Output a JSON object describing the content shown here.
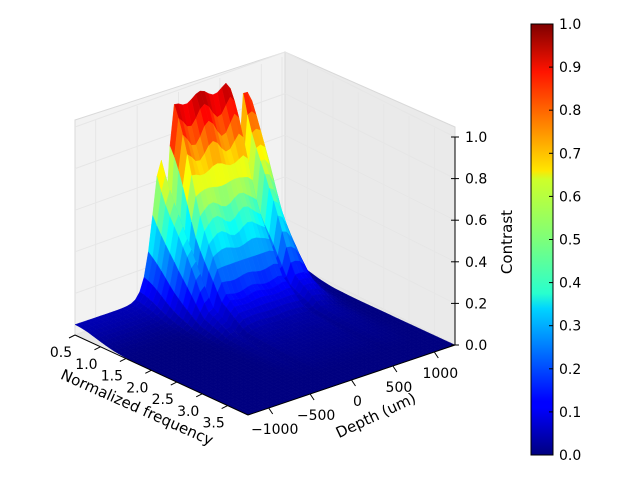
{
  "chart_data": {
    "type": "surface3d",
    "title": "",
    "x_axis": {
      "label": "Normalized frequency",
      "ticks": [
        0.5,
        1.0,
        1.5,
        2.0,
        2.5,
        3.0,
        3.5
      ],
      "tick_labels": [
        "0.5",
        "1.0",
        "1.5",
        "2.0",
        "2.5",
        "3.0",
        "3.5"
      ],
      "range": [
        0.5,
        3.9
      ]
    },
    "y_axis": {
      "label": "Depth (um)",
      "ticks": [
        -1000,
        -500,
        0,
        500,
        1000
      ],
      "tick_labels": [
        "−1000",
        "−500",
        "0",
        "500",
        "1000"
      ],
      "range": [
        -1250,
        1250
      ]
    },
    "z_axis": {
      "label": "Contrast",
      "ticks": [
        0.0,
        0.2,
        0.4,
        0.6,
        0.8,
        1.0
      ],
      "tick_labels": [
        "0.0",
        "0.2",
        "0.4",
        "0.6",
        "0.8",
        "1.0"
      ],
      "range": [
        0.0,
        1.0
      ]
    },
    "colorbar": {
      "colormap": "jet",
      "ticks": [
        0.0,
        0.1,
        0.2,
        0.3,
        0.4,
        0.5,
        0.6,
        0.7,
        0.8,
        0.9,
        1.0
      ],
      "tick_labels": [
        "0.0",
        "0.1",
        "0.2",
        "0.3",
        "0.4",
        "0.5",
        "0.6",
        "0.7",
        "0.8",
        "0.9",
        "1.0"
      ],
      "range": [
        0.0,
        1.0
      ]
    },
    "surface_profile": {
      "frequency": [
        0.5,
        1.0,
        1.5,
        2.0,
        2.5,
        3.0,
        3.5,
        3.9
      ],
      "peak_contrast": [
        0.95,
        0.5,
        0.15,
        0.04,
        0.02,
        0.01,
        0.0,
        0.0
      ],
      "plateau_depth_range": [
        -300,
        1000
      ],
      "notch_depths": [
        -150,
        700
      ]
    },
    "grid": true,
    "colors": {
      "pane": "#f2f2f2",
      "grid": "#e6e6e6"
    }
  }
}
